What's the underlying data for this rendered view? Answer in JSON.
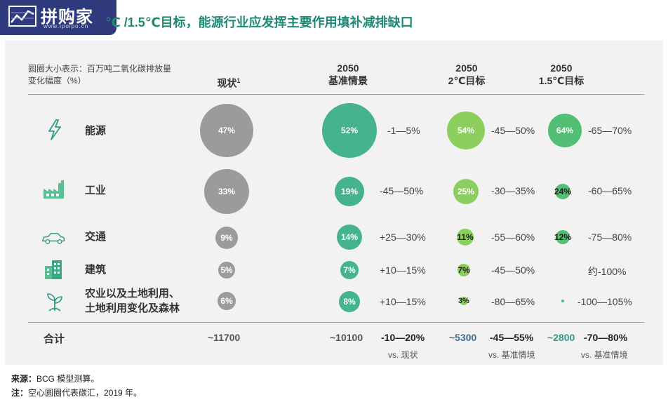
{
  "logo": {
    "text": "拼购家",
    "url": "www.ipoipo.cn"
  },
  "title": "℃ /1.5℃目标，能源行业应发挥主要作用填补减排缺口",
  "legend_note": [
    "圆圈大小表示：百万吨二氧化碳排放量",
    "变化幅度（%）"
  ],
  "columns": {
    "current": {
      "label": "现状",
      "sup": "1"
    },
    "baseline": {
      "year": "2050",
      "label": "基准情景"
    },
    "target2": {
      "year": "2050",
      "label": "2℃目标"
    },
    "target15": {
      "year": "2050",
      "label": "1.5℃目标"
    }
  },
  "colors": {
    "gray": "#9b9b9b",
    "baseline": "#45b38e",
    "target2": "#8ccf5e",
    "target15": "#52bf74",
    "title": "#1d8a72"
  },
  "chart_data": {
    "type": "bubble-table",
    "size_unit": "百万吨二氧化碳排放量",
    "rows": [
      {
        "sector": "能源",
        "icon": "lightning-icon",
        "current": "47%",
        "baseline": "52%",
        "baseline_change": "-1—5%",
        "target2": "54%",
        "target2_change": "-45—50%",
        "target15": "64%",
        "target15_change": "-65—70%"
      },
      {
        "sector": "工业",
        "icon": "factory-icon",
        "current": "33%",
        "baseline": "19%",
        "baseline_change": "-45—50%",
        "target2": "25%",
        "target2_change": "-30—35%",
        "target15": "24%",
        "target15_change": "-60—65%"
      },
      {
        "sector": "交通",
        "icon": "car-icon",
        "current": "9%",
        "baseline": "14%",
        "baseline_change": "+25—30%",
        "target2": "11%",
        "target2_change": "-55—60%",
        "target15": "12%",
        "target15_change": "-75—80%"
      },
      {
        "sector": "建筑",
        "icon": "building-icon",
        "current": "5%",
        "baseline": "7%",
        "baseline_change": "+10—15%",
        "target2": "7%",
        "target2_change": "-45—50%",
        "target15": "",
        "target15_change": "约-100%"
      },
      {
        "sector": [
          "农业以及土地利用、",
          "土地利用变化及森林"
        ],
        "icon": "plant-icon",
        "current": "6%",
        "baseline": "8%",
        "baseline_change": "+10—15%",
        "target2": "3%",
        "target2_change": "-80—65%",
        "target15": "",
        "target15_change": "-100—105%"
      }
    ],
    "totals": {
      "label": "合计",
      "current": "~11700",
      "baseline": "~10100",
      "baseline_change": "-10—20%",
      "baseline_vs": "vs. 现状",
      "target2": "~5300",
      "target2_change": "-45—55%",
      "target2_vs": "vs. 基准情境",
      "target15": "~2800",
      "target15_change": "-70—80%",
      "target15_vs": "vs. 基准情境"
    }
  },
  "footnotes": {
    "source_label": "来源：",
    "source": "BCG 模型测算。",
    "note_label": "注：",
    "note": "空心圆圈代表碳汇，2019 年。"
  }
}
